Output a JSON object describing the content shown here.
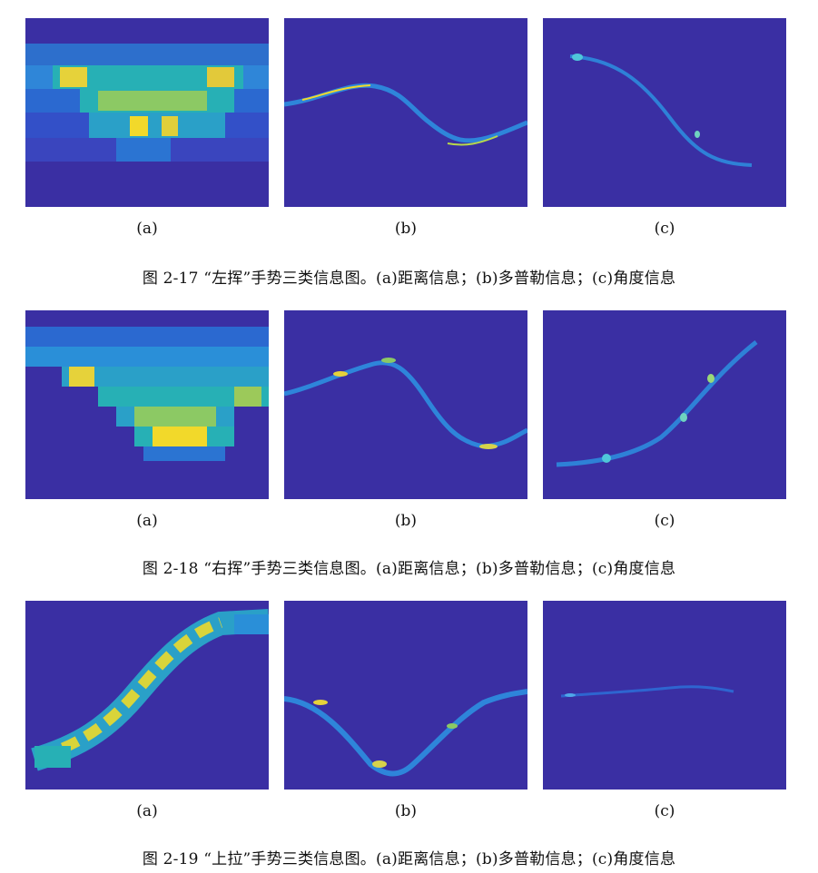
{
  "figures": [
    {
      "caption": "图 2-17 “左挥”手势三类信息图。(a)距离信息；(b)多普勒信息；(c)角度信息",
      "panels": [
        {
          "label": "(a)",
          "kind": "range"
        },
        {
          "label": "(b)",
          "kind": "doppler"
        },
        {
          "label": "(c)",
          "kind": "angle"
        }
      ]
    },
    {
      "caption": "图 2-18 “右挥”手势三类信息图。(a)距离信息；(b)多普勒信息；(c)角度信息",
      "panels": [
        {
          "label": "(a)",
          "kind": "range"
        },
        {
          "label": "(b)",
          "kind": "doppler"
        },
        {
          "label": "(c)",
          "kind": "angle"
        }
      ]
    },
    {
      "caption": "图 2-19 “上拉”手势三类信息图。(a)距离信息；(b)多普勒信息；(c)角度信息",
      "panels": [
        {
          "label": "(a)",
          "kind": "range"
        },
        {
          "label": "(b)",
          "kind": "doppler"
        },
        {
          "label": "(c)",
          "kind": "angle"
        }
      ]
    }
  ],
  "colors": {
    "background": "#3a2fa3",
    "low": "#2c7ad9",
    "mid": "#1fb8b8",
    "high": "#f2d92a"
  }
}
